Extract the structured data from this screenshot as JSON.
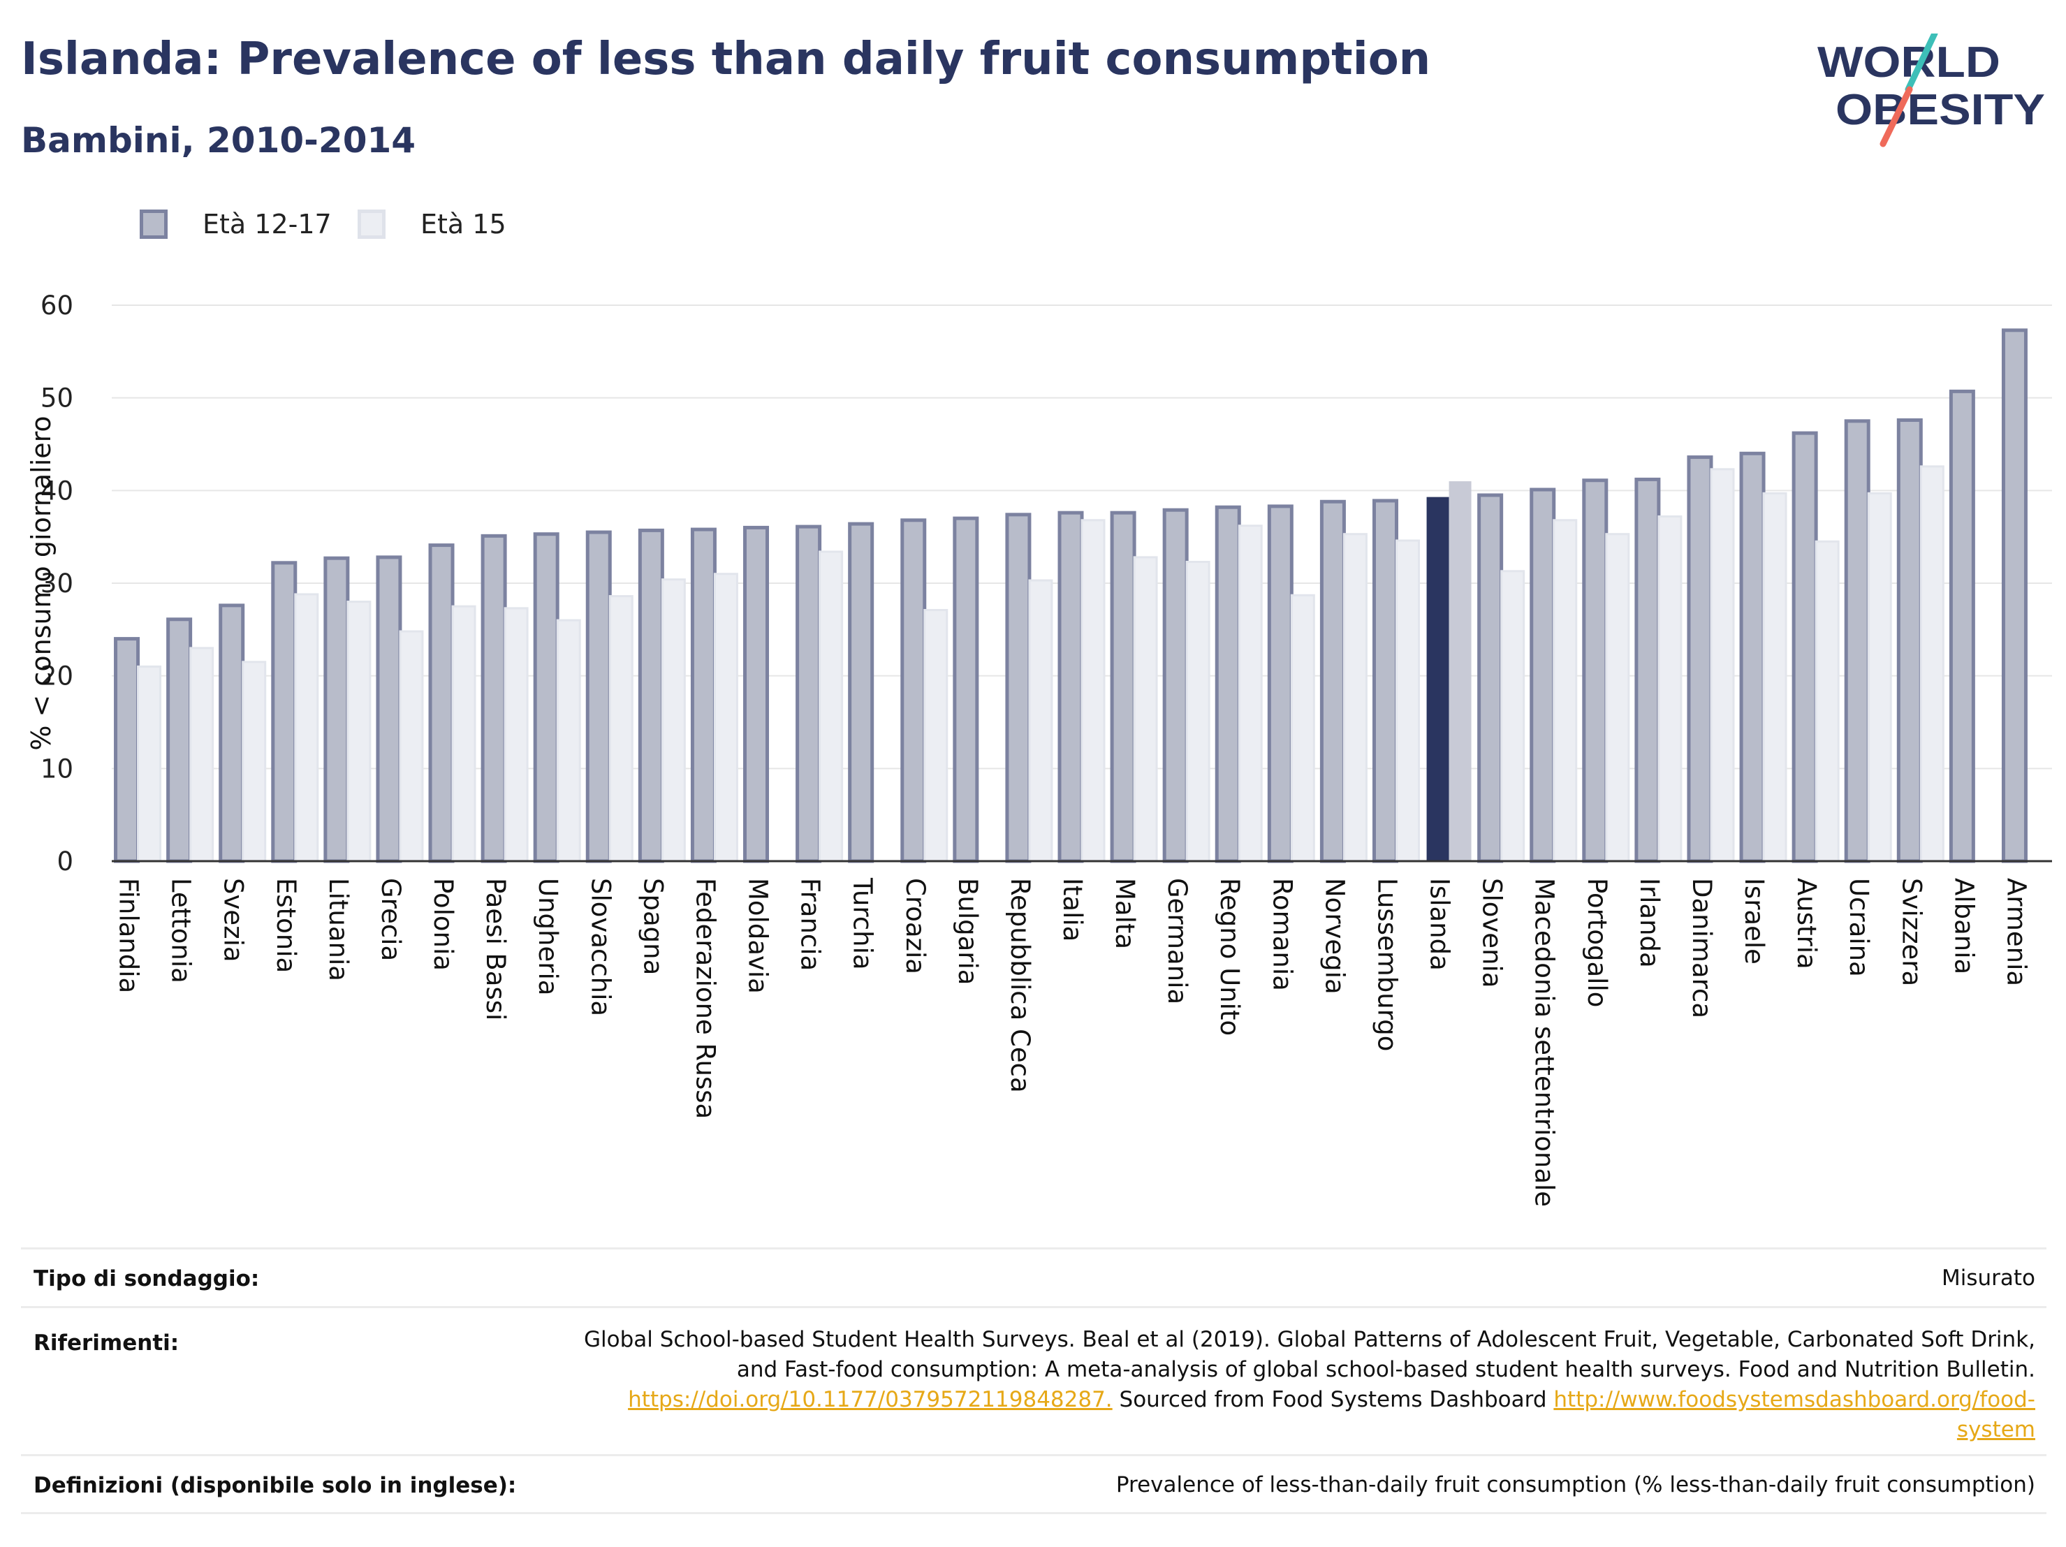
{
  "header": {
    "title": "Islanda: Prevalence of less than daily fruit consumption",
    "subtitle": "Bambini, 2010-2014"
  },
  "logo": {
    "line1": "WORLD",
    "line2": "OBESITY"
  },
  "legend": [
    {
      "label": "Età 12-17",
      "fill": "#b8bcca",
      "stroke": "#7c82a0"
    },
    {
      "label": "Età 15",
      "fill": "#eceef3",
      "stroke": "#dfe2ea"
    }
  ],
  "chart_data": {
    "type": "bar",
    "ylabel": "% < consumo giornaliero",
    "ylim": [
      0,
      60
    ],
    "yticks": [
      0,
      10,
      20,
      30,
      40,
      50,
      60
    ],
    "grid": true,
    "legend_position": "top-left",
    "highlight": "Islanda",
    "colors": {
      "series1": "#b8bcca",
      "series1_border": "#7c82a0",
      "series2": "#eceef3",
      "highlight1": "#2a3560",
      "highlight2": "#c8cad6"
    },
    "categories": [
      "Finlandia",
      "Lettonia",
      "Svezia",
      "Estonia",
      "Lituania",
      "Grecia",
      "Polonia",
      "Paesi Bassi",
      "Ungheria",
      "Slovacchia",
      "Spagna",
      "Federazione Russa",
      "Moldavia",
      "Francia",
      "Turchia",
      "Croazia",
      "Bulgaria",
      "Repubblica Ceca",
      "Italia",
      "Malta",
      "Germania",
      "Regno Unito",
      "Romania",
      "Norvegia",
      "Lussemburgo",
      "Islanda",
      "Slovenia",
      "Macedonia settentrionale",
      "Portogallo",
      "Irlanda",
      "Danimarca",
      "Israele",
      "Austria",
      "Ucraina",
      "Svizzera",
      "Albania",
      "Armenia"
    ],
    "series": [
      {
        "name": "Età 12-17",
        "values": [
          24.0,
          26.1,
          27.6,
          32.2,
          32.7,
          32.8,
          34.1,
          35.1,
          35.3,
          35.5,
          35.7,
          35.8,
          36.0,
          36.1,
          36.4,
          36.8,
          37.0,
          37.4,
          37.6,
          37.6,
          37.9,
          38.2,
          38.3,
          38.8,
          38.9,
          39.3,
          39.5,
          40.1,
          41.1,
          41.2,
          43.6,
          44.0,
          46.2,
          47.5,
          47.6,
          50.7,
          57.3
        ]
      },
      {
        "name": "Età 15",
        "values": [
          21.0,
          23.0,
          21.5,
          28.8,
          28.0,
          24.8,
          27.5,
          27.3,
          26.0,
          28.6,
          30.4,
          31.0,
          null,
          33.4,
          null,
          27.1,
          null,
          30.3,
          36.8,
          32.8,
          32.3,
          36.2,
          28.7,
          35.3,
          34.6,
          41.0,
          31.3,
          36.8,
          35.3,
          37.2,
          42.3,
          39.7,
          34.5,
          39.7,
          42.6,
          null,
          null
        ]
      }
    ]
  },
  "info_table": [
    {
      "label": "Tipo di sondaggio:",
      "value": "Misurato"
    },
    {
      "label": "Riferimenti:",
      "value_lines": [
        "Global School-based Student Health Surveys. Beal et al (2019). Global Patterns of Adolescent Fruit, Vegetable, Carbonated Soft Drink,",
        "and Fast-food consumption: A meta-analysis of global school-based student health surveys. Food and Nutrition Bulletin."
      ],
      "link1": "https://doi.org/10.1177/0379572119848287.",
      "sourced_text": " Sourced from Food Systems Dashboard ",
      "link2a": "http://www.foodsystemsdashboard.org/food-",
      "link2b": "system"
    },
    {
      "label": "Definizioni (disponibile solo in inglese):",
      "value": "Prevalence of less-than-daily fruit consumption (% less-than-daily fruit consumption)"
    }
  ]
}
